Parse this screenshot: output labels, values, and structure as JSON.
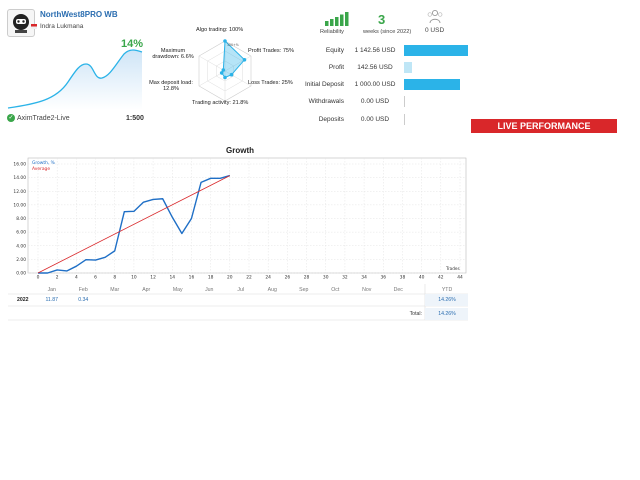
{
  "account": {
    "name": "NorthWest8PRO WB",
    "owner": "Indra Lukmana",
    "growth": "14%",
    "broker": "AximTrade2-Live",
    "leverage": "1:500"
  },
  "radar": {
    "algo_trading": "Algo trading: 100%",
    "profit_trades": "Profit Trades: 75%",
    "loss_trades": "Loss Trades: 25%",
    "trading_activity": "Trading activity: 21.8%",
    "max_deposit_load": [
      "Max deposit load:",
      "12.8%"
    ],
    "max_drawdown": [
      "Maximum",
      "drawdown: 6.6%"
    ],
    "center_tick": "100+%",
    "values": {
      "algo": 100,
      "profit": 75,
      "loss": 25,
      "activity": 21.8,
      "deposit_load": 12.8,
      "drawdown": 6.6
    }
  },
  "summary": {
    "reliability_label": "Reliability",
    "weeks": "3",
    "weeks_label": "weeks (since 2022)",
    "deposit_count": "0 USD",
    "colors": {
      "reliability": "#3aa64a",
      "bar": "#2bb3e8"
    }
  },
  "stats": [
    {
      "label": "Equity",
      "value": "1 142.56 USD",
      "fill": 1.0
    },
    {
      "label": "Profit",
      "value": "142.56 USD",
      "fill": 0.125
    },
    {
      "label": "Initial Deposit",
      "value": "1 000.00 USD",
      "fill": 0.875
    },
    {
      "label": "Withdrawals",
      "value": "0.00 USD",
      "fill": 0
    },
    {
      "label": "Deposits",
      "value": "0.00 USD",
      "fill": 0
    }
  ],
  "banner": "LIVE PERFORMANCE",
  "chart_data": {
    "type": "line",
    "title": "Growth",
    "legend": [
      "Growth, %",
      "Average"
    ],
    "x_axis_label": "Trades",
    "x_ticks": [
      "0",
      "2",
      "4",
      "6",
      "8",
      "10",
      "12",
      "14",
      "16",
      "18",
      "20",
      "22",
      "24",
      "26",
      "28",
      "30",
      "32",
      "34",
      "36",
      "38",
      "40",
      "42",
      "44"
    ],
    "y_ticks": [
      "0.00",
      "2.00",
      "4.00",
      "6.00",
      "8.00",
      "10.00",
      "12.00",
      "14.00",
      "16.00"
    ],
    "xlim": [
      0,
      44
    ],
    "ylim": [
      0,
      16
    ],
    "grid": true,
    "legend_position": "top-left",
    "series": [
      {
        "name": "Growth, %",
        "color": "#1f6fc6",
        "x": [
          0,
          1,
          2,
          3,
          4,
          5,
          6,
          7,
          8,
          9,
          10,
          11,
          12,
          13,
          14,
          15,
          16,
          17,
          18,
          19,
          20
        ],
        "y": [
          0,
          0,
          0.45,
          0.3,
          1.0,
          1.95,
          1.9,
          2.3,
          3.25,
          9.0,
          9.05,
          10.4,
          10.8,
          10.9,
          8.2,
          5.8,
          8.0,
          13.3,
          13.9,
          13.9,
          14.3
        ]
      },
      {
        "name": "Average",
        "color": "#d9272a",
        "x": [
          0,
          20
        ],
        "y": [
          0,
          14.3
        ]
      }
    ]
  },
  "monthly": {
    "months": [
      "Jan",
      "Feb",
      "Mar",
      "Apr",
      "May",
      "Jun",
      "Jul",
      "Aug",
      "Sep",
      "Oct",
      "Nov",
      "Dec"
    ],
    "ytd_label": "YTD",
    "year": "2022",
    "values": [
      "11.87",
      "0.34",
      "",
      "",
      "",
      "",
      "",
      "",
      "",
      "",
      "",
      ""
    ],
    "ytd": "14.26%",
    "total_label": "Total:",
    "total": "14.26%"
  }
}
